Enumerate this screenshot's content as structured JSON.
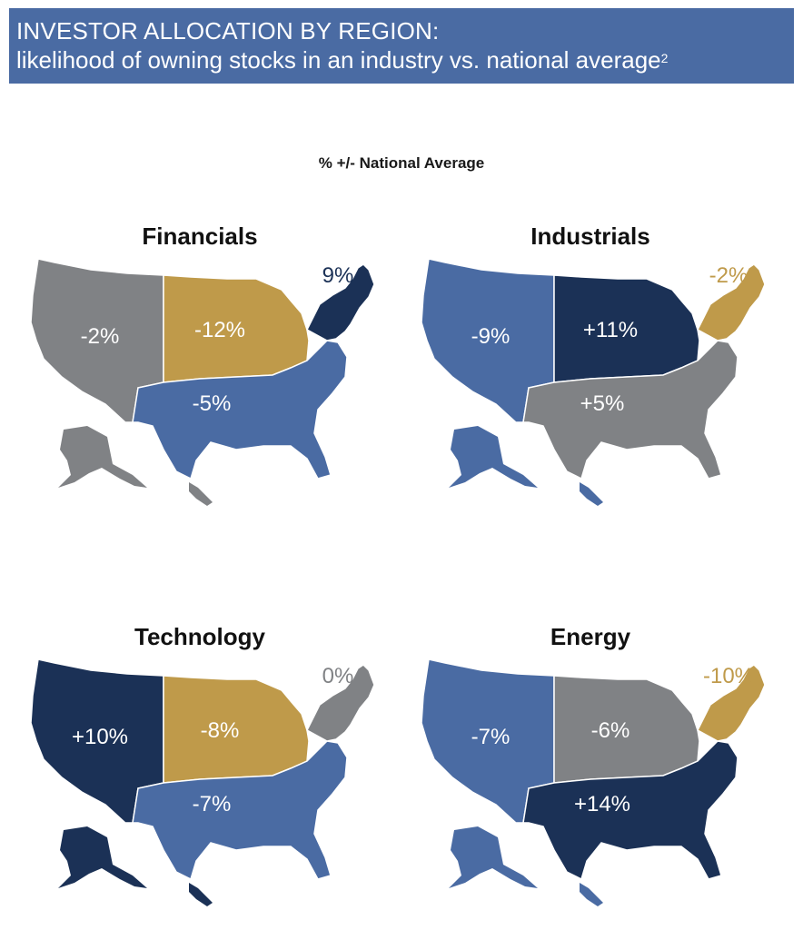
{
  "header": {
    "line1": "INVESTOR ALLOCATION BY REGION:",
    "line2": "likelihood of owning stocks in an industry vs. national average",
    "footnote": "2"
  },
  "subtitle": "% +/- National Average",
  "colors": {
    "navy": "#1b3156",
    "blue": "#4a6ba3",
    "gold": "#bf9a4a",
    "gray": "#808285",
    "header_bg": "#4a6ba3"
  },
  "maps": [
    {
      "title": "Financials",
      "regions": {
        "west": {
          "value": "-2%",
          "color": "gray"
        },
        "midwest": {
          "value": "-12%",
          "color": "gold"
        },
        "south": {
          "value": "-5%",
          "color": "blue"
        },
        "northeast": {
          "value": "9%",
          "color": "navy"
        }
      }
    },
    {
      "title": "Industrials",
      "regions": {
        "west": {
          "value": "-9%",
          "color": "blue"
        },
        "midwest": {
          "value": "+11%",
          "color": "navy"
        },
        "south": {
          "value": "+5%",
          "color": "gray"
        },
        "northeast": {
          "value": "-2%",
          "color": "gold"
        }
      }
    },
    {
      "title": "Technology",
      "regions": {
        "west": {
          "value": "+10%",
          "color": "navy"
        },
        "midwest": {
          "value": "-8%",
          "color": "gold"
        },
        "south": {
          "value": "-7%",
          "color": "blue"
        },
        "northeast": {
          "value": "0%",
          "color": "gray"
        }
      }
    },
    {
      "title": "Energy",
      "regions": {
        "west": {
          "value": "-7%",
          "color": "blue"
        },
        "midwest": {
          "value": "-6%",
          "color": "gray"
        },
        "south": {
          "value": "+14%",
          "color": "navy"
        },
        "northeast": {
          "value": "-10%",
          "color": "gold"
        }
      }
    }
  ]
}
